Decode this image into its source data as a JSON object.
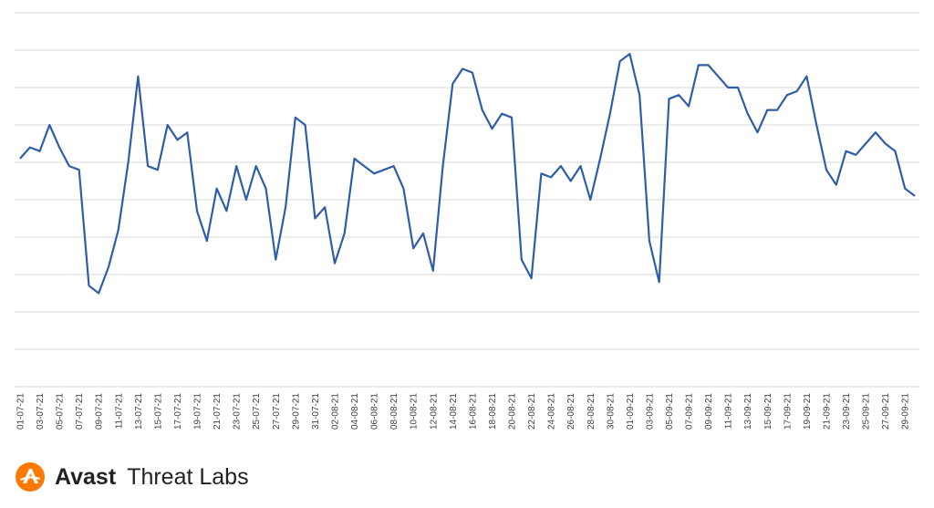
{
  "chart_data": {
    "type": "line",
    "title": "",
    "xlabel": "",
    "ylabel": "",
    "ylim": [
      0,
      10
    ],
    "grid": true,
    "x": [
      "01-07-21",
      "02-07-21",
      "03-07-21",
      "04-07-21",
      "05-07-21",
      "06-07-21",
      "07-07-21",
      "08-07-21",
      "09-07-21",
      "10-07-21",
      "11-07-21",
      "12-07-21",
      "13-07-21",
      "14-07-21",
      "15-07-21",
      "16-07-21",
      "17-07-21",
      "18-07-21",
      "19-07-21",
      "20-07-21",
      "21-07-21",
      "22-07-21",
      "23-07-21",
      "24-07-21",
      "25-07-21",
      "26-07-21",
      "27-07-21",
      "28-07-21",
      "29-07-21",
      "30-07-21",
      "31-07-21",
      "01-08-21",
      "02-08-21",
      "03-08-21",
      "04-08-21",
      "05-08-21",
      "06-08-21",
      "07-08-21",
      "08-08-21",
      "09-08-21",
      "10-08-21",
      "11-08-21",
      "12-08-21",
      "13-08-21",
      "14-08-21",
      "15-08-21",
      "16-08-21",
      "17-08-21",
      "18-08-21",
      "19-08-21",
      "20-08-21",
      "21-08-21",
      "22-08-21",
      "23-08-21",
      "24-08-21",
      "25-08-21",
      "26-08-21",
      "27-08-21",
      "28-08-21",
      "29-08-21",
      "30-08-21",
      "31-08-21",
      "01-09-21",
      "02-09-21",
      "03-09-21",
      "04-09-21",
      "05-09-21",
      "06-09-21",
      "07-09-21",
      "08-09-21",
      "09-09-21",
      "10-09-21",
      "11-09-21",
      "12-09-21",
      "13-09-21",
      "14-09-21",
      "15-09-21",
      "16-09-21",
      "17-09-21",
      "18-09-21",
      "19-09-21",
      "20-09-21",
      "21-09-21",
      "22-09-21",
      "23-09-21",
      "24-09-21",
      "25-09-21",
      "26-09-21",
      "27-09-21",
      "28-09-21",
      "29-09-21",
      "30-09-21"
    ],
    "tick_labels": [
      "01-07-21",
      "03-07-21",
      "05-07-21",
      "07-07-21",
      "09-07-21",
      "11-07-21",
      "13-07-21",
      "15-07-21",
      "17-07-21",
      "19-07-21",
      "21-07-21",
      "23-07-21",
      "25-07-21",
      "27-07-21",
      "29-07-21",
      "31-07-21",
      "02-08-21",
      "04-08-21",
      "06-08-21",
      "08-08-21",
      "10-08-21",
      "12-08-21",
      "14-08-21",
      "16-08-21",
      "18-08-21",
      "20-08-21",
      "22-08-21",
      "24-08-21",
      "26-08-21",
      "28-08-21",
      "30-08-21",
      "01-09-21",
      "03-09-21",
      "05-09-21",
      "07-09-21",
      "09-09-21",
      "11-09-21",
      "13-09-21",
      "15-09-21",
      "17-09-21",
      "19-09-21",
      "21-09-21",
      "23-09-21",
      "25-09-21",
      "27-09-21",
      "29-09-21"
    ],
    "series": [
      {
        "values": [
          6.1,
          6.4,
          6.3,
          7.0,
          6.4,
          5.9,
          5.8,
          2.7,
          2.5,
          3.2,
          4.2,
          6.0,
          8.3,
          5.9,
          5.8,
          7.0,
          6.6,
          6.8,
          4.7,
          3.9,
          5.3,
          4.7,
          5.9,
          5.0,
          5.9,
          5.3,
          3.4,
          4.8,
          7.2,
          7.0,
          4.5,
          4.8,
          3.3,
          4.1,
          6.1,
          5.9,
          5.7,
          5.8,
          5.9,
          5.3,
          3.7,
          4.1,
          3.1,
          5.9,
          8.1,
          8.5,
          8.4,
          7.4,
          6.9,
          7.3,
          7.2,
          3.4,
          2.9,
          5.7,
          5.6,
          5.9,
          5.5,
          5.9,
          5.0,
          6.1,
          7.3,
          8.7,
          8.9,
          7.8,
          3.9,
          2.8,
          7.7,
          7.8,
          7.5,
          8.6,
          8.6,
          8.3,
          8.0,
          8.0,
          7.3,
          6.8,
          7.4,
          7.4,
          7.8,
          7.9,
          8.3,
          7.0,
          5.8,
          5.4,
          6.3,
          6.2,
          6.5,
          6.8,
          6.5,
          6.3,
          5.3,
          5.1
        ]
      }
    ]
  },
  "brand": {
    "name": "Avast",
    "sub": "Threat Labs",
    "icon": "avast-logo-icon",
    "accent": "#ff7800"
  },
  "colors": {
    "line": "#2f5ea8",
    "grid": "#d9d9d9"
  }
}
